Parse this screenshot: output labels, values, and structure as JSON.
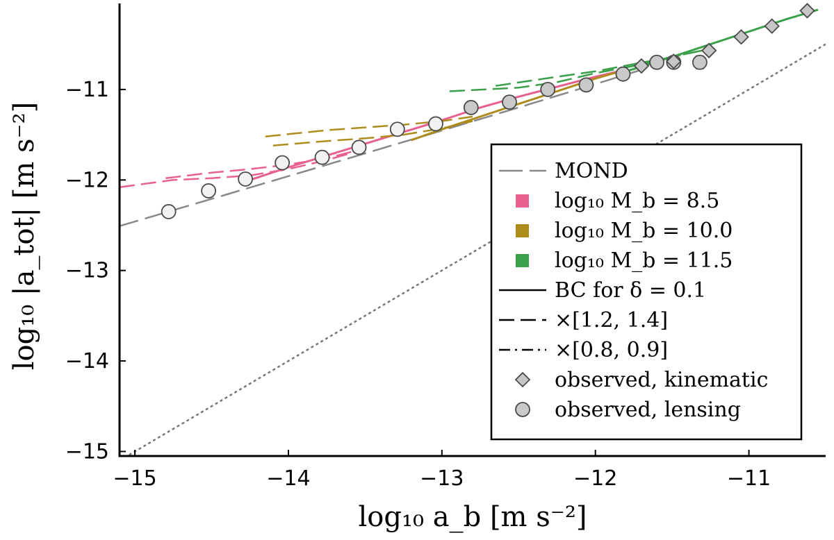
{
  "chart_data": {
    "type": "line",
    "xlabel": "log₁₀ a_b [m s⁻²]",
    "ylabel": "log₁₀ |a_tot| [m s⁻²]",
    "xlim": [
      -15.1,
      -10.5
    ],
    "ylim": [
      -15.05,
      -10.05
    ],
    "xticks": [
      -15,
      -14,
      -13,
      -12,
      -11
    ],
    "yticks": [
      -15,
      -14,
      -13,
      -12,
      -11
    ],
    "xtick_labels": [
      "−15",
      "−14",
      "−13",
      "−12",
      "−11"
    ],
    "ytick_labels": [
      "−15",
      "−14",
      "−13",
      "−12",
      "−11"
    ],
    "grid": false,
    "legend_position": "bottom-right",
    "colors": {
      "mond": "#888888",
      "identity": "#777777",
      "mb_8_5": "#e8608f",
      "mb_10_0": "#ad8c1c",
      "mb_11_5": "#3aa04a",
      "marker_fill_kinematic": "#c6c6c6",
      "marker_fill_lensing_dark": "#c9c9c9",
      "marker_fill_lensing_light": "#f2f2f2",
      "marker_edge": "#4a4a4a"
    },
    "legend": [
      {
        "key": "mond",
        "style": "long-dash",
        "label": "MOND"
      },
      {
        "key": "mb_8_5",
        "style": "square",
        "label": "log₁₀ M_b = 8.5"
      },
      {
        "key": "mb_10_0",
        "style": "square",
        "label": "log₁₀ M_b = 10.0"
      },
      {
        "key": "mb_11_5",
        "style": "square",
        "label": "log₁₀ M_b = 11.5"
      },
      {
        "key": "bc",
        "style": "solid",
        "label": "BC for δ = 0.1"
      },
      {
        "key": "range_high",
        "style": "dashed",
        "label": "×[1.2, 1.4]"
      },
      {
        "key": "range_low",
        "style": "dashdot",
        "label": "×[0.8, 0.9]"
      },
      {
        "key": "kinematic",
        "style": "diamond",
        "label": "observed,  kinematic"
      },
      {
        "key": "lensing",
        "style": "circle",
        "label": "observed,  lensing"
      }
    ],
    "identity_line": {
      "name": "a_tot = a_b",
      "x": [
        -15.1,
        -10.5
      ],
      "y": [
        -15.1,
        -10.5
      ]
    },
    "mond_curve": {
      "name": "MOND",
      "a0_log10": -9.92,
      "x_range": [
        -15.1,
        -11.6
      ]
    },
    "series": [
      {
        "name": "log₁₀ M_b = 8.5 (BC δ = 0.1)",
        "color_key": "mb_8_5",
        "style": "solid",
        "x": [
          -14.25,
          -14.0,
          -13.75,
          -13.5,
          -13.25,
          -13.0,
          -12.75,
          -12.5,
          -12.25,
          -12.0,
          -11.8
        ],
        "y": [
          -12.0,
          -11.86,
          -11.73,
          -11.6,
          -11.47,
          -11.34,
          -11.2,
          -11.08,
          -10.97,
          -10.86,
          -10.78
        ]
      },
      {
        "name": "log₁₀ M_b = 8.5 ×1.2",
        "color_key": "mb_8_5",
        "style": "dashed",
        "x": [
          -15.1,
          -14.75,
          -14.5,
          -14.25,
          -14.0,
          -13.75,
          -13.5
        ],
        "y": [
          -12.08,
          -12.0,
          -11.98,
          -11.95,
          -11.88,
          -11.78,
          -11.66
        ]
      },
      {
        "name": "log₁₀ M_b = 8.5 ×1.4",
        "color_key": "mb_8_5",
        "style": "dashed",
        "x": [
          -14.8,
          -14.5,
          -14.25,
          -14.0,
          -13.75,
          -13.5
        ],
        "y": [
          -11.98,
          -11.92,
          -11.88,
          -11.83,
          -11.76,
          -11.65
        ]
      },
      {
        "name": "log₁₀ M_b = 10.0 (BC δ = 0.1)",
        "color_key": "mb_10_0",
        "style": "solid",
        "x": [
          -13.2,
          -13.0,
          -12.75,
          -12.5,
          -12.25,
          -12.0,
          -11.8
        ],
        "y": [
          -11.56,
          -11.44,
          -11.3,
          -11.16,
          -11.02,
          -10.88,
          -10.78
        ]
      },
      {
        "name": "log₁₀ M_b = 10.0 ×1.2",
        "color_key": "mb_10_0",
        "style": "dashed",
        "x": [
          -14.1,
          -13.75,
          -13.5,
          -13.25,
          -13.0,
          -12.8
        ],
        "y": [
          -11.62,
          -11.57,
          -11.54,
          -11.5,
          -11.43,
          -11.35
        ]
      },
      {
        "name": "log₁₀ M_b = 10.0 ×1.4",
        "color_key": "mb_10_0",
        "style": "dashed",
        "x": [
          -14.15,
          -13.75,
          -13.5,
          -13.25,
          -13.0,
          -12.8
        ],
        "y": [
          -11.52,
          -11.45,
          -11.42,
          -11.39,
          -11.35,
          -11.3
        ]
      },
      {
        "name": "log₁₀ M_b = 11.5 (BC δ = 0.1)",
        "color_key": "mb_11_5",
        "style": "solid",
        "x": [
          -11.8,
          -11.5,
          -11.25,
          -11.0,
          -10.75,
          -10.55
        ],
        "y": [
          -10.8,
          -10.64,
          -10.5,
          -10.36,
          -10.22,
          -10.12
        ]
      },
      {
        "name": "log₁₀ M_b = 11.5 ×1.2",
        "color_key": "mb_11_5",
        "style": "dashed",
        "x": [
          -12.95,
          -12.5,
          -12.25,
          -12.0,
          -11.75,
          -11.5,
          -11.25
        ],
        "y": [
          -11.02,
          -10.98,
          -10.92,
          -10.82,
          -10.74,
          -10.64,
          -10.55
        ]
      },
      {
        "name": "log₁₀ M_b = 11.5 ×1.4",
        "color_key": "mb_11_5",
        "style": "dashed",
        "x": [
          -12.65,
          -12.25,
          -12.0,
          -11.75,
          -11.5,
          -11.25
        ],
        "y": [
          -10.96,
          -10.86,
          -10.8,
          -10.72,
          -10.64,
          -10.55
        ]
      }
    ],
    "observed_kinematic": {
      "x": [
        -11.7,
        -11.49,
        -11.26,
        -11.05,
        -10.85,
        -10.62
      ],
      "y": [
        -10.74,
        -10.69,
        -10.57,
        -10.42,
        -10.3,
        -10.13
      ]
    },
    "observed_lensing": {
      "x": [
        -14.78,
        -14.52,
        -14.28,
        -14.04,
        -13.78,
        -13.54,
        -13.29,
        -13.04,
        -12.81,
        -12.56,
        -12.31,
        -12.06,
        -11.82,
        -11.6,
        -11.49,
        -11.32
      ],
      "y": [
        -12.35,
        -12.12,
        -11.99,
        -11.81,
        -11.75,
        -11.64,
        -11.44,
        -11.38,
        -11.2,
        -11.14,
        -11.0,
        -10.95,
        -10.83,
        -10.7,
        -10.7,
        -10.7
      ],
      "yerr": [
        0.05,
        0.06,
        0.05,
        0.06,
        0.05,
        0.05,
        0.04,
        0.04,
        0.05,
        0.05,
        0.05,
        0.05,
        0.04,
        0.05,
        0.05,
        0.07
      ]
    }
  }
}
